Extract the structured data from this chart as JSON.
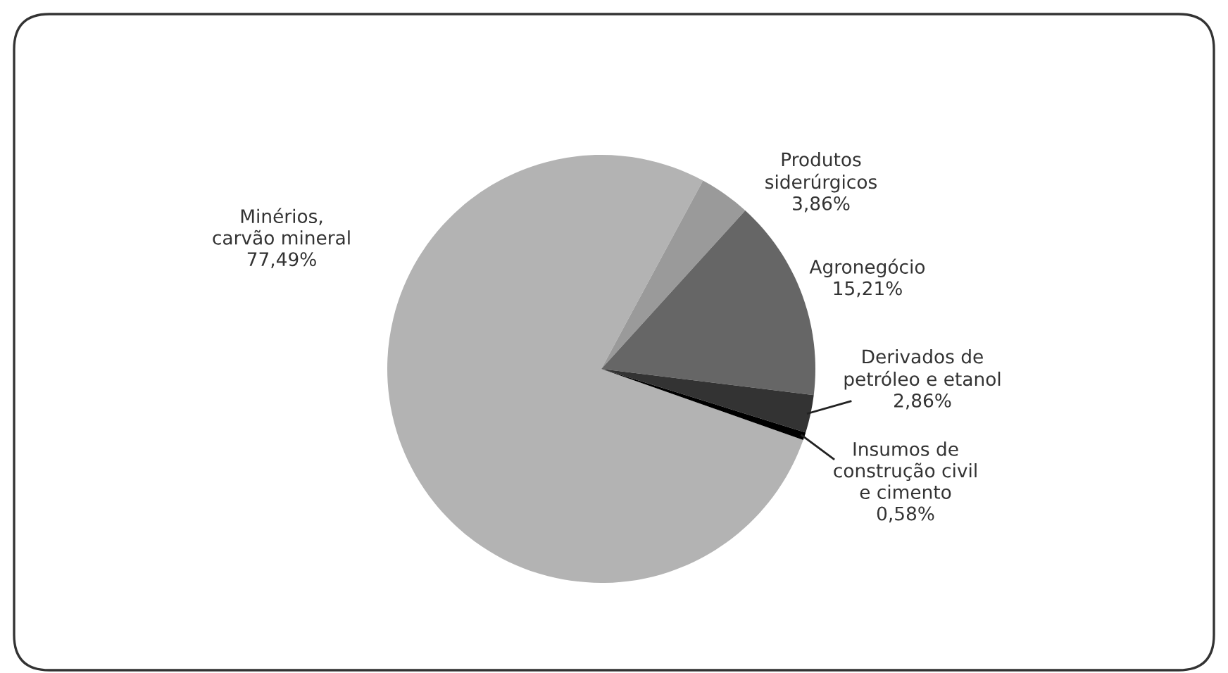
{
  "chart_data": {
    "type": "pie",
    "categories": [
      "Minérios,\ncarvão mineral",
      "Produtos\nsiderúrgicos",
      "Agronegócio",
      "Derivados de\npetróleo e etanol",
      "Insumos de\nconstrução civil\ne cimento"
    ],
    "values": [
      77.49,
      3.86,
      15.21,
      2.86,
      0.58
    ],
    "value_labels": [
      "77,49%",
      "3,86%",
      "15,21%",
      "2,86%",
      "0,58%"
    ],
    "colors": [
      "#b3b3b3",
      "#9a9a9a",
      "#666666",
      "#333333",
      "#000000"
    ]
  }
}
